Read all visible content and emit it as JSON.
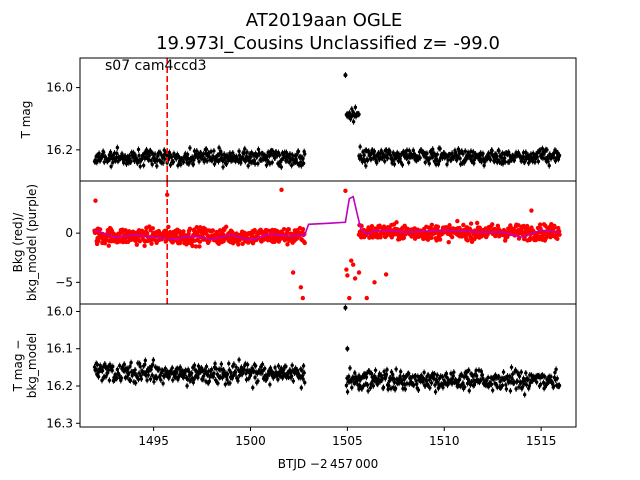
{
  "figure": {
    "title_line1": "AT2019aan  OGLE",
    "title_line2": "19.973I_Cousins Unclassified z= -99.0",
    "annotation": "s07 cam4ccd3",
    "xlabel": "BTJD −2 457 000"
  },
  "colors": {
    "data": "#000000",
    "bkg_points": "#ff0000",
    "bkg_model": "#bf00bf",
    "event_marker": "#ff0000",
    "axes": "#000000"
  },
  "chart_data": [
    {
      "type": "scatter",
      "panel": "top",
      "ylabel": "T mag",
      "xlim": [
        1491.2,
        1516.8
      ],
      "ylim": [
        16.3,
        15.905
      ],
      "y_inverted": true,
      "yticks": [
        16.0,
        16.2
      ],
      "ytick_labels": [
        "16.0",
        "16.2"
      ],
      "event_marker_x": 1495.7,
      "segments": [
        {
          "x_start": 1491.95,
          "x_end": 1502.8,
          "y_center": 16.225,
          "y_scatter": 0.035
        },
        {
          "x_start": 1504.95,
          "x_end": 1505.6,
          "y_center": 16.09,
          "y_scatter": 0.03
        },
        {
          "x_start": 1505.6,
          "x_end": 1515.95,
          "y_center": 16.22,
          "y_scatter": 0.035
        }
      ],
      "outliers": [
        {
          "x": 1504.9,
          "y": 15.96
        }
      ]
    },
    {
      "type": "scatter",
      "panel": "middle",
      "ylabel": "Bkg (red)/\nbkg_model (purple)",
      "xlim": [
        1491.2,
        1516.8
      ],
      "ylim": [
        -7.2,
        5.3
      ],
      "yticks": [
        -5,
        0
      ],
      "ytick_labels": [
        "−5",
        "0"
      ],
      "series": [
        {
          "name": "Bkg",
          "color": "#ff0000",
          "segments": [
            {
              "x_start": 1491.95,
              "x_end": 1502.8,
              "y_center": -0.3,
              "y_scatter": 1.2
            },
            {
              "x_start": 1505.6,
              "x_end": 1515.95,
              "y_center": 0.1,
              "y_scatter": 1.1
            }
          ],
          "points": [
            {
              "x": 1492.0,
              "y": 3.3
            },
            {
              "x": 1495.7,
              "y": 3.9
            },
            {
              "x": 1501.6,
              "y": 4.4
            },
            {
              "x": 1502.2,
              "y": -4.0
            },
            {
              "x": 1502.6,
              "y": -5.5
            },
            {
              "x": 1502.7,
              "y": -6.6
            },
            {
              "x": 1504.9,
              "y": 4.3
            },
            {
              "x": 1504.95,
              "y": -3.7
            },
            {
              "x": 1505.0,
              "y": -4.3
            },
            {
              "x": 1505.1,
              "y": -6.6
            },
            {
              "x": 1505.2,
              "y": -2.8
            },
            {
              "x": 1505.3,
              "y": -3.2
            },
            {
              "x": 1505.4,
              "y": -4.6
            },
            {
              "x": 1505.6,
              "y": -4.0
            },
            {
              "x": 1506.0,
              "y": -6.6
            },
            {
              "x": 1506.4,
              "y": -5.0
            },
            {
              "x": 1507.0,
              "y": -4.2
            },
            {
              "x": 1514.5,
              "y": 2.3
            }
          ]
        },
        {
          "name": "bkg_model",
          "color": "#bf00bf",
          "type": "line",
          "x": [
            1491.95,
            1493.0,
            1494.0,
            1495.0,
            1496.0,
            1497.0,
            1498.0,
            1499.0,
            1500.0,
            1501.0,
            1502.0,
            1502.8,
            1503.0,
            1504.0,
            1504.9,
            1505.1,
            1505.3,
            1505.5,
            1505.7,
            1506.0,
            1506.3,
            1507.0,
            1508.0,
            1509.0,
            1510.0,
            1511.0,
            1512.0,
            1513.0,
            1514.0,
            1515.0,
            1515.95
          ],
          "y": [
            0.3,
            -0.4,
            -0.2,
            -0.4,
            -0.6,
            -0.3,
            -0.6,
            -0.2,
            -0.7,
            -0.1,
            -0.3,
            -0.2,
            0.9,
            1.0,
            1.1,
            3.5,
            3.7,
            2.0,
            0.4,
            -0.1,
            0.2,
            0.3,
            0.1,
            0.2,
            0.3,
            0.2,
            0.1,
            0.1,
            -0.4,
            0.3,
            0.1
          ]
        }
      ]
    },
    {
      "type": "scatter",
      "panel": "bottom",
      "ylabel": "T mag −\nbkg_model",
      "xlim": [
        1491.2,
        1516.8
      ],
      "ylim": [
        16.31,
        15.98
      ],
      "y_inverted": true,
      "yticks": [
        16.0,
        16.1,
        16.2,
        16.3
      ],
      "ytick_labels": [
        "16.0",
        "16.1",
        "16.2",
        "16.3"
      ],
      "xticks": [
        1495,
        1500,
        1505,
        1510,
        1515
      ],
      "xtick_labels": [
        "1495",
        "1500",
        "1505",
        "1510",
        "1515"
      ],
      "segments": [
        {
          "x_start": 1491.95,
          "x_end": 1502.8,
          "y_center": 16.165,
          "y_scatter": 0.04
        },
        {
          "x_start": 1504.95,
          "x_end": 1505.6,
          "y_center": 16.19,
          "y_scatter": 0.04
        },
        {
          "x_start": 1505.6,
          "x_end": 1515.95,
          "y_center": 16.185,
          "y_scatter": 0.04
        }
      ],
      "outliers": [
        {
          "x": 1504.9,
          "y": 15.99
        },
        {
          "x": 1505.0,
          "y": 16.1
        }
      ]
    }
  ]
}
